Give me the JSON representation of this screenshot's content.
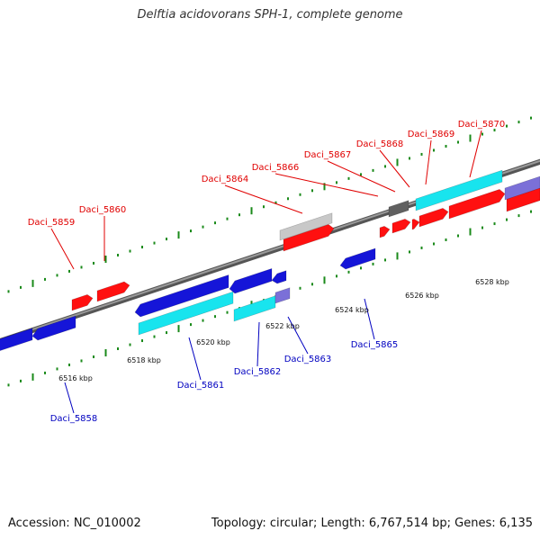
{
  "title": "Delftia acidovorans SPH-1, complete genome",
  "footer": {
    "accession": "Accession: NC_010002",
    "summary": "Topology: circular; Length: 6,767,514 bp; Genes: 6,135"
  },
  "colors": {
    "forward_gene": "#ff1010",
    "reverse_gene": "#1515d8",
    "cyan_feature": "#18e4ee",
    "purple_feature": "#7b70d8",
    "gray_feature": "#606060",
    "light_gray_feature": "#c8c8c8",
    "backbone": "#7a7a7a",
    "tick": "#1a8a1a",
    "forward_label": "#e00000",
    "reverse_label": "#0000c0"
  },
  "scale_labels": [
    "6516 kbp",
    "6518 kbp",
    "6520 kbp",
    "6522 kbp",
    "6524 kbp",
    "6526 kbp",
    "6528 kbp"
  ],
  "forward_genes": [
    "Daci_5859",
    "Daci_5860",
    "Daci_5864",
    "Daci_5866",
    "Daci_5867",
    "Daci_5868",
    "Daci_5869",
    "Daci_5870"
  ],
  "reverse_genes": [
    "Daci_5858",
    "Daci_5861",
    "Daci_5862",
    "Daci_5863",
    "Daci_5865"
  ]
}
